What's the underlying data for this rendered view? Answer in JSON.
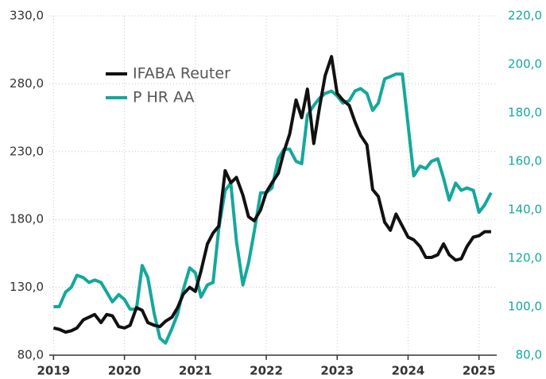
{
  "chart_data": {
    "type": "line",
    "x": [
      2019,
      2019.08,
      2019.17,
      2019.25,
      2019.33,
      2019.42,
      2019.5,
      2019.58,
      2019.67,
      2019.75,
      2019.83,
      2019.92,
      2020,
      2020.08,
      2020.17,
      2020.25,
      2020.33,
      2020.42,
      2020.5,
      2020.58,
      2020.67,
      2020.75,
      2020.83,
      2020.92,
      2021,
      2021.08,
      2021.17,
      2021.25,
      2021.33,
      2021.42,
      2021.5,
      2021.58,
      2021.67,
      2021.75,
      2021.83,
      2021.92,
      2022,
      2022.08,
      2022.17,
      2022.25,
      2022.33,
      2022.42,
      2022.5,
      2022.58,
      2022.67,
      2022.75,
      2022.83,
      2022.92,
      2023,
      2023.08,
      2023.17,
      2023.25,
      2023.33,
      2023.42,
      2023.5,
      2023.58,
      2023.67,
      2023.75,
      2023.83,
      2023.92,
      2024,
      2024.08,
      2024.17,
      2024.25,
      2024.33,
      2024.42,
      2024.5,
      2024.58,
      2024.67,
      2024.75,
      2024.83,
      2024.92,
      2025,
      2025.08,
      2025.17
    ],
    "series": [
      {
        "name": "IFABA Reuter",
        "color": "#111111",
        "values": [
          100,
          99,
          97,
          98,
          100,
          106,
          108,
          110,
          104,
          110,
          109,
          101,
          100,
          102,
          115,
          113,
          104,
          102,
          101,
          105,
          108,
          115,
          125,
          130,
          127,
          142,
          162,
          170,
          175,
          216,
          207,
          211,
          198,
          182,
          179,
          187,
          200,
          207,
          214,
          230,
          243,
          268,
          255,
          276,
          236,
          262,
          286,
          300,
          273,
          268,
          264,
          252,
          242,
          235,
          202,
          197,
          178,
          172,
          184,
          175,
          167,
          165,
          160,
          152,
          152,
          154,
          162,
          154,
          150,
          151,
          160,
          167,
          168,
          171,
          171
        ]
      },
      {
        "name": "P HR AA",
        "color": "#14a89c",
        "axis": "y2",
        "values": [
          100,
          100,
          106,
          108,
          113,
          112,
          110,
          111,
          110,
          106,
          102,
          105,
          103,
          99,
          99,
          117,
          112,
          97,
          87,
          85,
          91,
          97,
          107,
          116,
          114,
          104,
          109,
          110,
          132,
          148,
          151,
          127,
          109,
          118,
          131,
          147,
          147,
          149,
          161,
          165,
          165,
          160,
          159,
          179,
          183,
          186,
          188,
          189,
          187,
          184,
          185,
          189,
          190,
          188,
          181,
          184,
          194,
          195,
          196,
          196,
          175,
          154,
          158,
          157,
          160,
          161,
          153,
          144,
          151,
          148,
          149,
          148,
          139,
          142,
          147
        ]
      }
    ],
    "xlim": [
      2018.94,
      2025.25
    ],
    "xticks": [
      2019,
      2020,
      2021,
      2022,
      2023,
      2024,
      2025
    ],
    "ylim": [
      80,
      330
    ],
    "yticks": [
      {
        "value": 80,
        "label": "80,0"
      },
      {
        "value": 130,
        "label": "130,0"
      },
      {
        "value": 180,
        "label": "180,0"
      },
      {
        "value": 230,
        "label": "230,0"
      },
      {
        "value": 280,
        "label": "280,0"
      },
      {
        "value": 330,
        "label": "330,0"
      }
    ],
    "y2lim": [
      80,
      220
    ],
    "y2ticks": [
      {
        "value": 80,
        "label": "80,0"
      },
      {
        "value": 100,
        "label": "100,0"
      },
      {
        "value": 120,
        "label": "120,0"
      },
      {
        "value": 140,
        "label": "140,0"
      },
      {
        "value": 160,
        "label": "160,0"
      },
      {
        "value": 180,
        "label": "180,0"
      },
      {
        "value": 200,
        "label": "200,0"
      },
      {
        "value": 220,
        "label": "220,0"
      }
    ],
    "grid": true
  }
}
